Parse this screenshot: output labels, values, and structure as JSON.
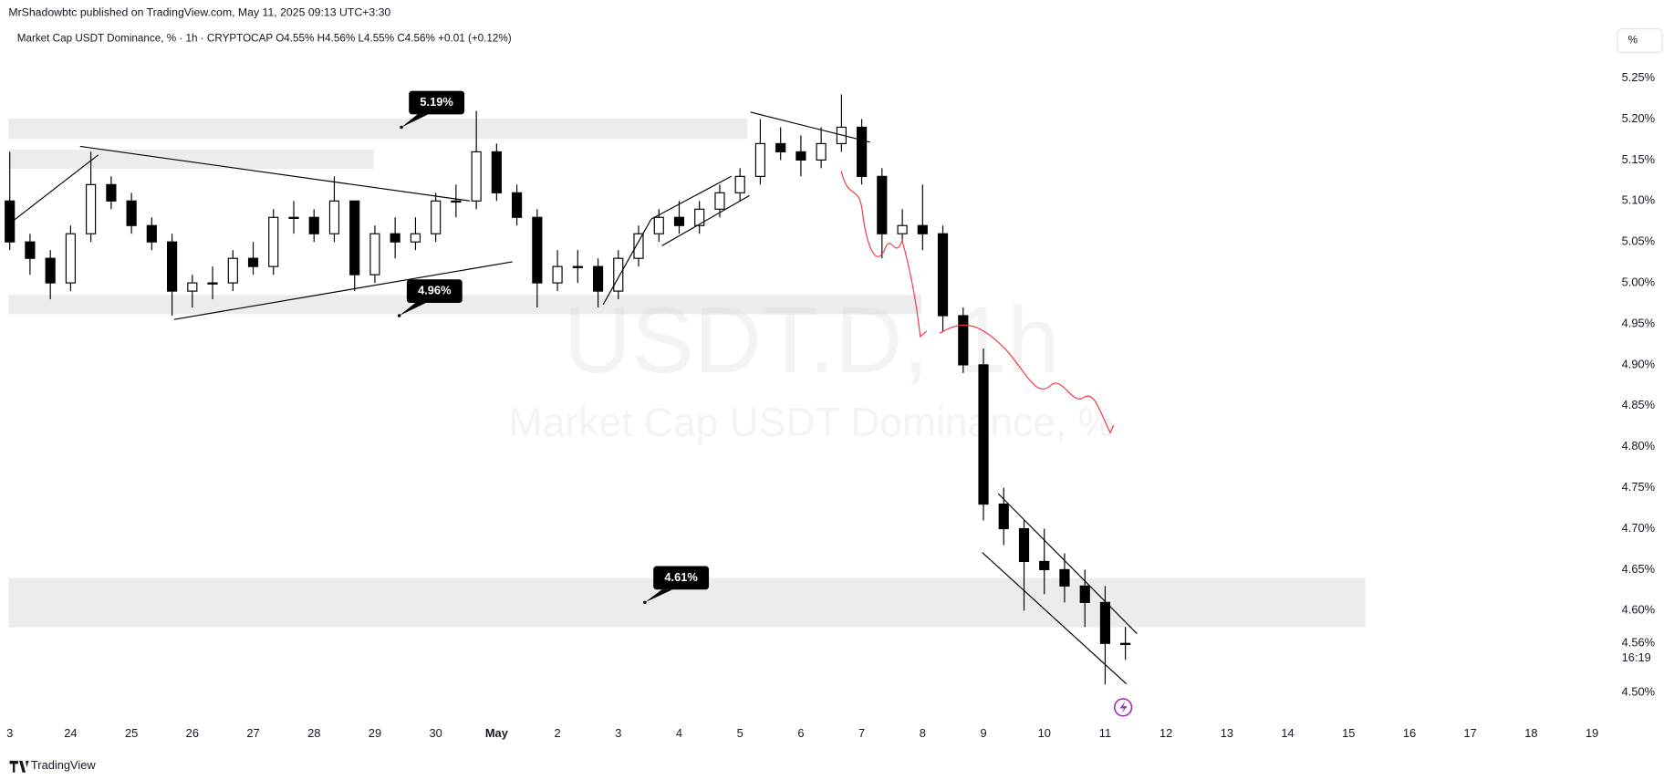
{
  "header": {
    "publisher": "MrShadowbtc published on TradingView.com, May 11, 2025 09:13 UTC+3:30",
    "legend": "Market Cap USDT Dominance, % · 1h · CRYPTOCAP  O4.55%  H4.56%  L4.55%  C4.56%  +0.01 (+0.12%)",
    "scale_button": "%"
  },
  "footer": {
    "brand": "TradingView"
  },
  "chart_data": {
    "type": "candlestick",
    "watermark": "USDT.D, 1h",
    "watermark_sub": "Market Cap USDT Dominance, %",
    "up_color": "#ffffff",
    "down_color": "#000000",
    "wick_color": "#000000",
    "x": [
      0,
      0.333,
      0.667,
      1,
      1.333,
      1.667,
      2,
      2.333,
      2.667,
      3,
      3.333,
      3.667,
      4,
      4.333,
      4.667,
      5,
      5.333,
      5.667,
      6,
      6.333,
      6.667,
      7,
      7.333,
      7.667,
      8,
      8.333,
      8.667,
      9,
      9.333,
      9.667,
      10,
      10.333,
      10.667,
      11,
      11.333,
      11.667,
      12,
      12.333,
      12.667,
      13,
      13.333,
      13.667,
      14,
      14.333,
      14.667,
      15,
      15.333,
      15.667,
      16,
      16.333,
      16.667,
      17,
      17.333,
      17.667,
      18,
      18.333
    ],
    "open": [
      5.1,
      5.05,
      5.03,
      5.0,
      5.06,
      5.12,
      5.1,
      5.07,
      5.05,
      4.99,
      5.0,
      5.0,
      5.03,
      5.02,
      5.08,
      5.08,
      5.06,
      5.1,
      5.01,
      5.06,
      5.05,
      5.06,
      5.1,
      5.1,
      5.16,
      5.11,
      5.08,
      5.0,
      5.02,
      5.02,
      4.99,
      5.03,
      5.06,
      5.08,
      5.07,
      5.09,
      5.11,
      5.13,
      5.17,
      5.16,
      5.15,
      5.17,
      5.19,
      5.13,
      5.06,
      5.07,
      5.06,
      4.96,
      4.9,
      4.73,
      4.7,
      4.66,
      4.65,
      4.63,
      4.61,
      4.56
    ],
    "high": [
      5.16,
      5.06,
      5.04,
      5.07,
      5.16,
      5.13,
      5.11,
      5.08,
      5.06,
      5.01,
      5.02,
      5.04,
      5.05,
      5.09,
      5.1,
      5.09,
      5.13,
      5.1,
      5.07,
      5.08,
      5.08,
      5.11,
      5.12,
      5.21,
      5.17,
      5.12,
      5.09,
      5.04,
      5.04,
      5.03,
      5.04,
      5.07,
      5.09,
      5.1,
      5.1,
      5.12,
      5.14,
      5.2,
      5.19,
      5.18,
      5.19,
      5.23,
      5.2,
      5.14,
      5.09,
      5.12,
      5.07,
      4.97,
      4.92,
      4.75,
      4.71,
      4.7,
      4.67,
      4.65,
      4.63,
      4.58
    ],
    "low": [
      5.04,
      5.01,
      4.98,
      4.99,
      5.05,
      5.09,
      5.06,
      5.04,
      4.96,
      4.97,
      4.98,
      4.99,
      5.01,
      5.01,
      5.06,
      5.05,
      5.05,
      4.99,
      5.0,
      5.03,
      5.04,
      5.05,
      5.08,
      5.09,
      5.1,
      5.07,
      4.97,
      4.99,
      5.0,
      4.97,
      4.98,
      5.02,
      5.05,
      5.06,
      5.06,
      5.08,
      5.1,
      5.12,
      5.15,
      5.13,
      5.14,
      5.16,
      5.12,
      5.03,
      5.05,
      5.04,
      4.94,
      4.89,
      4.71,
      4.68,
      4.6,
      4.62,
      4.61,
      4.58,
      4.51,
      4.54
    ],
    "close": [
      5.05,
      5.03,
      5.0,
      5.06,
      5.12,
      5.1,
      5.07,
      5.05,
      4.99,
      5.0,
      5.0,
      5.03,
      5.02,
      5.08,
      5.08,
      5.06,
      5.1,
      5.01,
      5.06,
      5.05,
      5.06,
      5.1,
      5.1,
      5.16,
      5.11,
      5.08,
      5.0,
      5.02,
      5.02,
      4.99,
      5.03,
      5.06,
      5.08,
      5.07,
      5.09,
      5.11,
      5.13,
      5.17,
      5.16,
      5.15,
      5.17,
      5.19,
      5.13,
      5.06,
      5.07,
      5.06,
      4.96,
      4.9,
      4.73,
      4.7,
      4.66,
      4.65,
      4.63,
      4.61,
      4.56,
      4.56
    ],
    "xlim": [
      -0.02,
      26.33
    ],
    "xticks": [
      {
        "value": 0,
        "label": "3"
      },
      {
        "value": 1,
        "label": "24"
      },
      {
        "value": 2,
        "label": "25"
      },
      {
        "value": 3,
        "label": "26"
      },
      {
        "value": 4,
        "label": "27"
      },
      {
        "value": 5,
        "label": "28"
      },
      {
        "value": 6,
        "label": "29"
      },
      {
        "value": 7,
        "label": "30"
      },
      {
        "value": 8,
        "label": "May"
      },
      {
        "value": 9,
        "label": "2"
      },
      {
        "value": 10,
        "label": "3"
      },
      {
        "value": 11,
        "label": "4"
      },
      {
        "value": 12,
        "label": "5"
      },
      {
        "value": 13,
        "label": "6"
      },
      {
        "value": 14,
        "label": "7"
      },
      {
        "value": 15,
        "label": "8"
      },
      {
        "value": 16,
        "label": "9"
      },
      {
        "value": 17,
        "label": "10"
      },
      {
        "value": 18,
        "label": "11"
      },
      {
        "value": 19,
        "label": "12"
      },
      {
        "value": 20,
        "label": "13"
      },
      {
        "value": 21,
        "label": "14"
      },
      {
        "value": 22,
        "label": "15"
      },
      {
        "value": 23,
        "label": "16"
      },
      {
        "value": 24,
        "label": "17"
      },
      {
        "value": 25,
        "label": "18"
      },
      {
        "value": 26,
        "label": "19"
      }
    ],
    "ylim": [
      4.465,
      5.284
    ],
    "yticks": [
      {
        "value": 4.5,
        "label": "4.50%"
      },
      {
        "value": 4.6,
        "label": "4.60%"
      },
      {
        "value": 4.65,
        "label": "4.65%"
      },
      {
        "value": 4.7,
        "label": "4.70%"
      },
      {
        "value": 4.75,
        "label": "4.75%"
      },
      {
        "value": 4.8,
        "label": "4.80%"
      },
      {
        "value": 4.85,
        "label": "4.85%"
      },
      {
        "value": 4.9,
        "label": "4.90%"
      },
      {
        "value": 4.95,
        "label": "4.95%"
      },
      {
        "value": 5.0,
        "label": "5.00%"
      },
      {
        "value": 5.05,
        "label": "5.05%"
      },
      {
        "value": 5.1,
        "label": "5.10%"
      },
      {
        "value": 5.15,
        "label": "5.15%"
      },
      {
        "value": 5.2,
        "label": "5.20%"
      },
      {
        "value": 5.25,
        "label": "5.25%"
      }
    ],
    "last_price": {
      "value": 4.56,
      "label": "4.56%",
      "countdown": "16:19"
    },
    "annotations": [
      {
        "value": 5.19,
        "label": "5.19%"
      },
      {
        "value": 4.96,
        "label": "4.96%"
      },
      {
        "value": 4.61,
        "label": "4.61%"
      }
    ]
  }
}
